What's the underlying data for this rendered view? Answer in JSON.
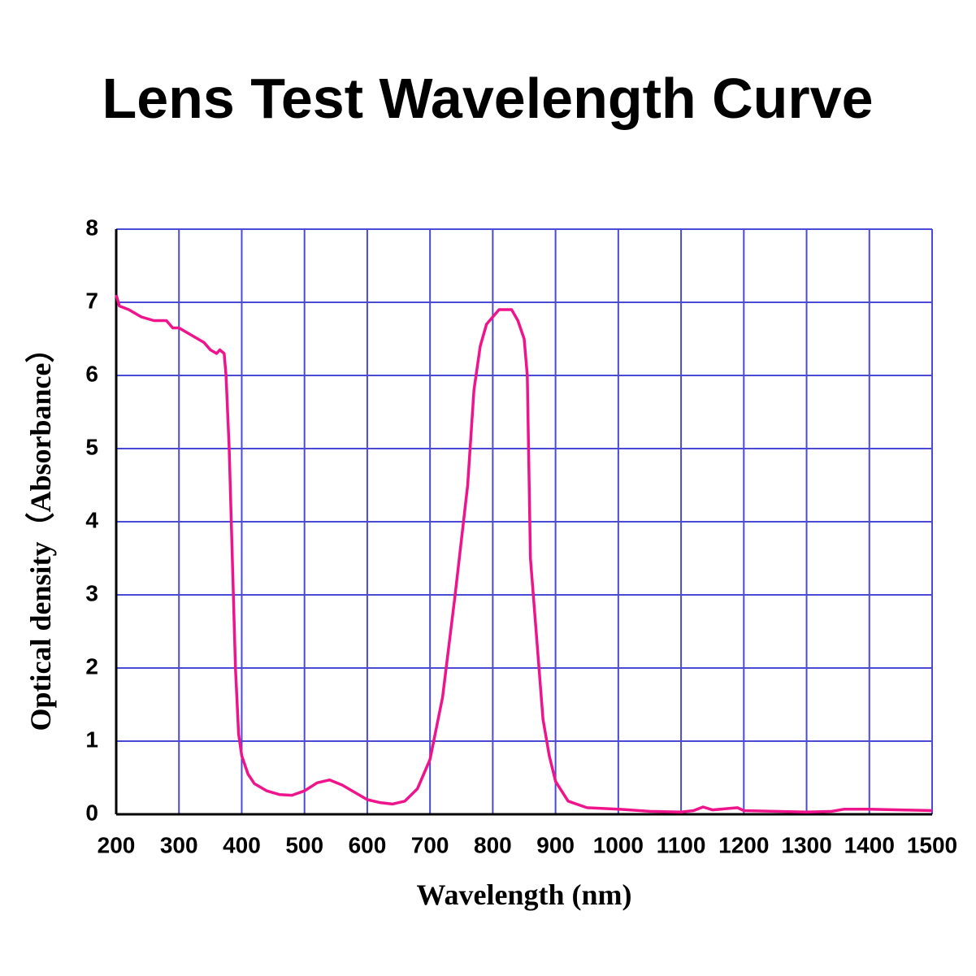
{
  "chart_data": {
    "type": "line",
    "title": "Lens Test Wavelength Curve",
    "x_label": "Wavelength (nm)",
    "y_label": "Optical density（Absorbance）",
    "color": "#f0148c",
    "grid_color": "#4a4ad6",
    "grid": true,
    "xlim": [
      200,
      1500
    ],
    "xticks": [
      200,
      300,
      400,
      500,
      600,
      700,
      800,
      900,
      1000,
      1100,
      1200,
      1300,
      1400,
      1500
    ],
    "ylim": [
      0,
      8
    ],
    "yticks": [
      0,
      1,
      2,
      3,
      4,
      5,
      6,
      7,
      8
    ],
    "x": [
      200,
      205,
      220,
      240,
      260,
      280,
      290,
      300,
      310,
      320,
      330,
      340,
      350,
      360,
      365,
      372,
      375,
      380,
      385,
      390,
      395,
      400,
      410,
      420,
      440,
      460,
      480,
      500,
      520,
      540,
      560,
      580,
      600,
      620,
      640,
      660,
      680,
      700,
      720,
      740,
      760,
      770,
      780,
      790,
      800,
      810,
      830,
      840,
      850,
      855,
      860,
      870,
      880,
      890,
      900,
      920,
      950,
      1000,
      1050,
      1100,
      1120,
      1135,
      1150,
      1190,
      1200,
      1300,
      1340,
      1360,
      1400,
      1450,
      1500
    ],
    "values": [
      7.1,
      6.95,
      6.9,
      6.8,
      6.75,
      6.75,
      6.65,
      6.65,
      6.6,
      6.55,
      6.5,
      6.45,
      6.35,
      6.3,
      6.35,
      6.3,
      6.0,
      5.0,
      3.5,
      2.0,
      1.1,
      0.8,
      0.55,
      0.42,
      0.32,
      0.27,
      0.26,
      0.32,
      0.43,
      0.47,
      0.4,
      0.3,
      0.2,
      0.16,
      0.14,
      0.18,
      0.35,
      0.75,
      1.6,
      3.0,
      4.5,
      5.8,
      6.4,
      6.7,
      6.8,
      6.9,
      6.9,
      6.75,
      6.5,
      6.0,
      3.5,
      2.4,
      1.3,
      0.8,
      0.45,
      0.18,
      0.09,
      0.07,
      0.04,
      0.03,
      0.05,
      0.1,
      0.06,
      0.09,
      0.05,
      0.03,
      0.04,
      0.07,
      0.07,
      0.06,
      0.05
    ]
  }
}
